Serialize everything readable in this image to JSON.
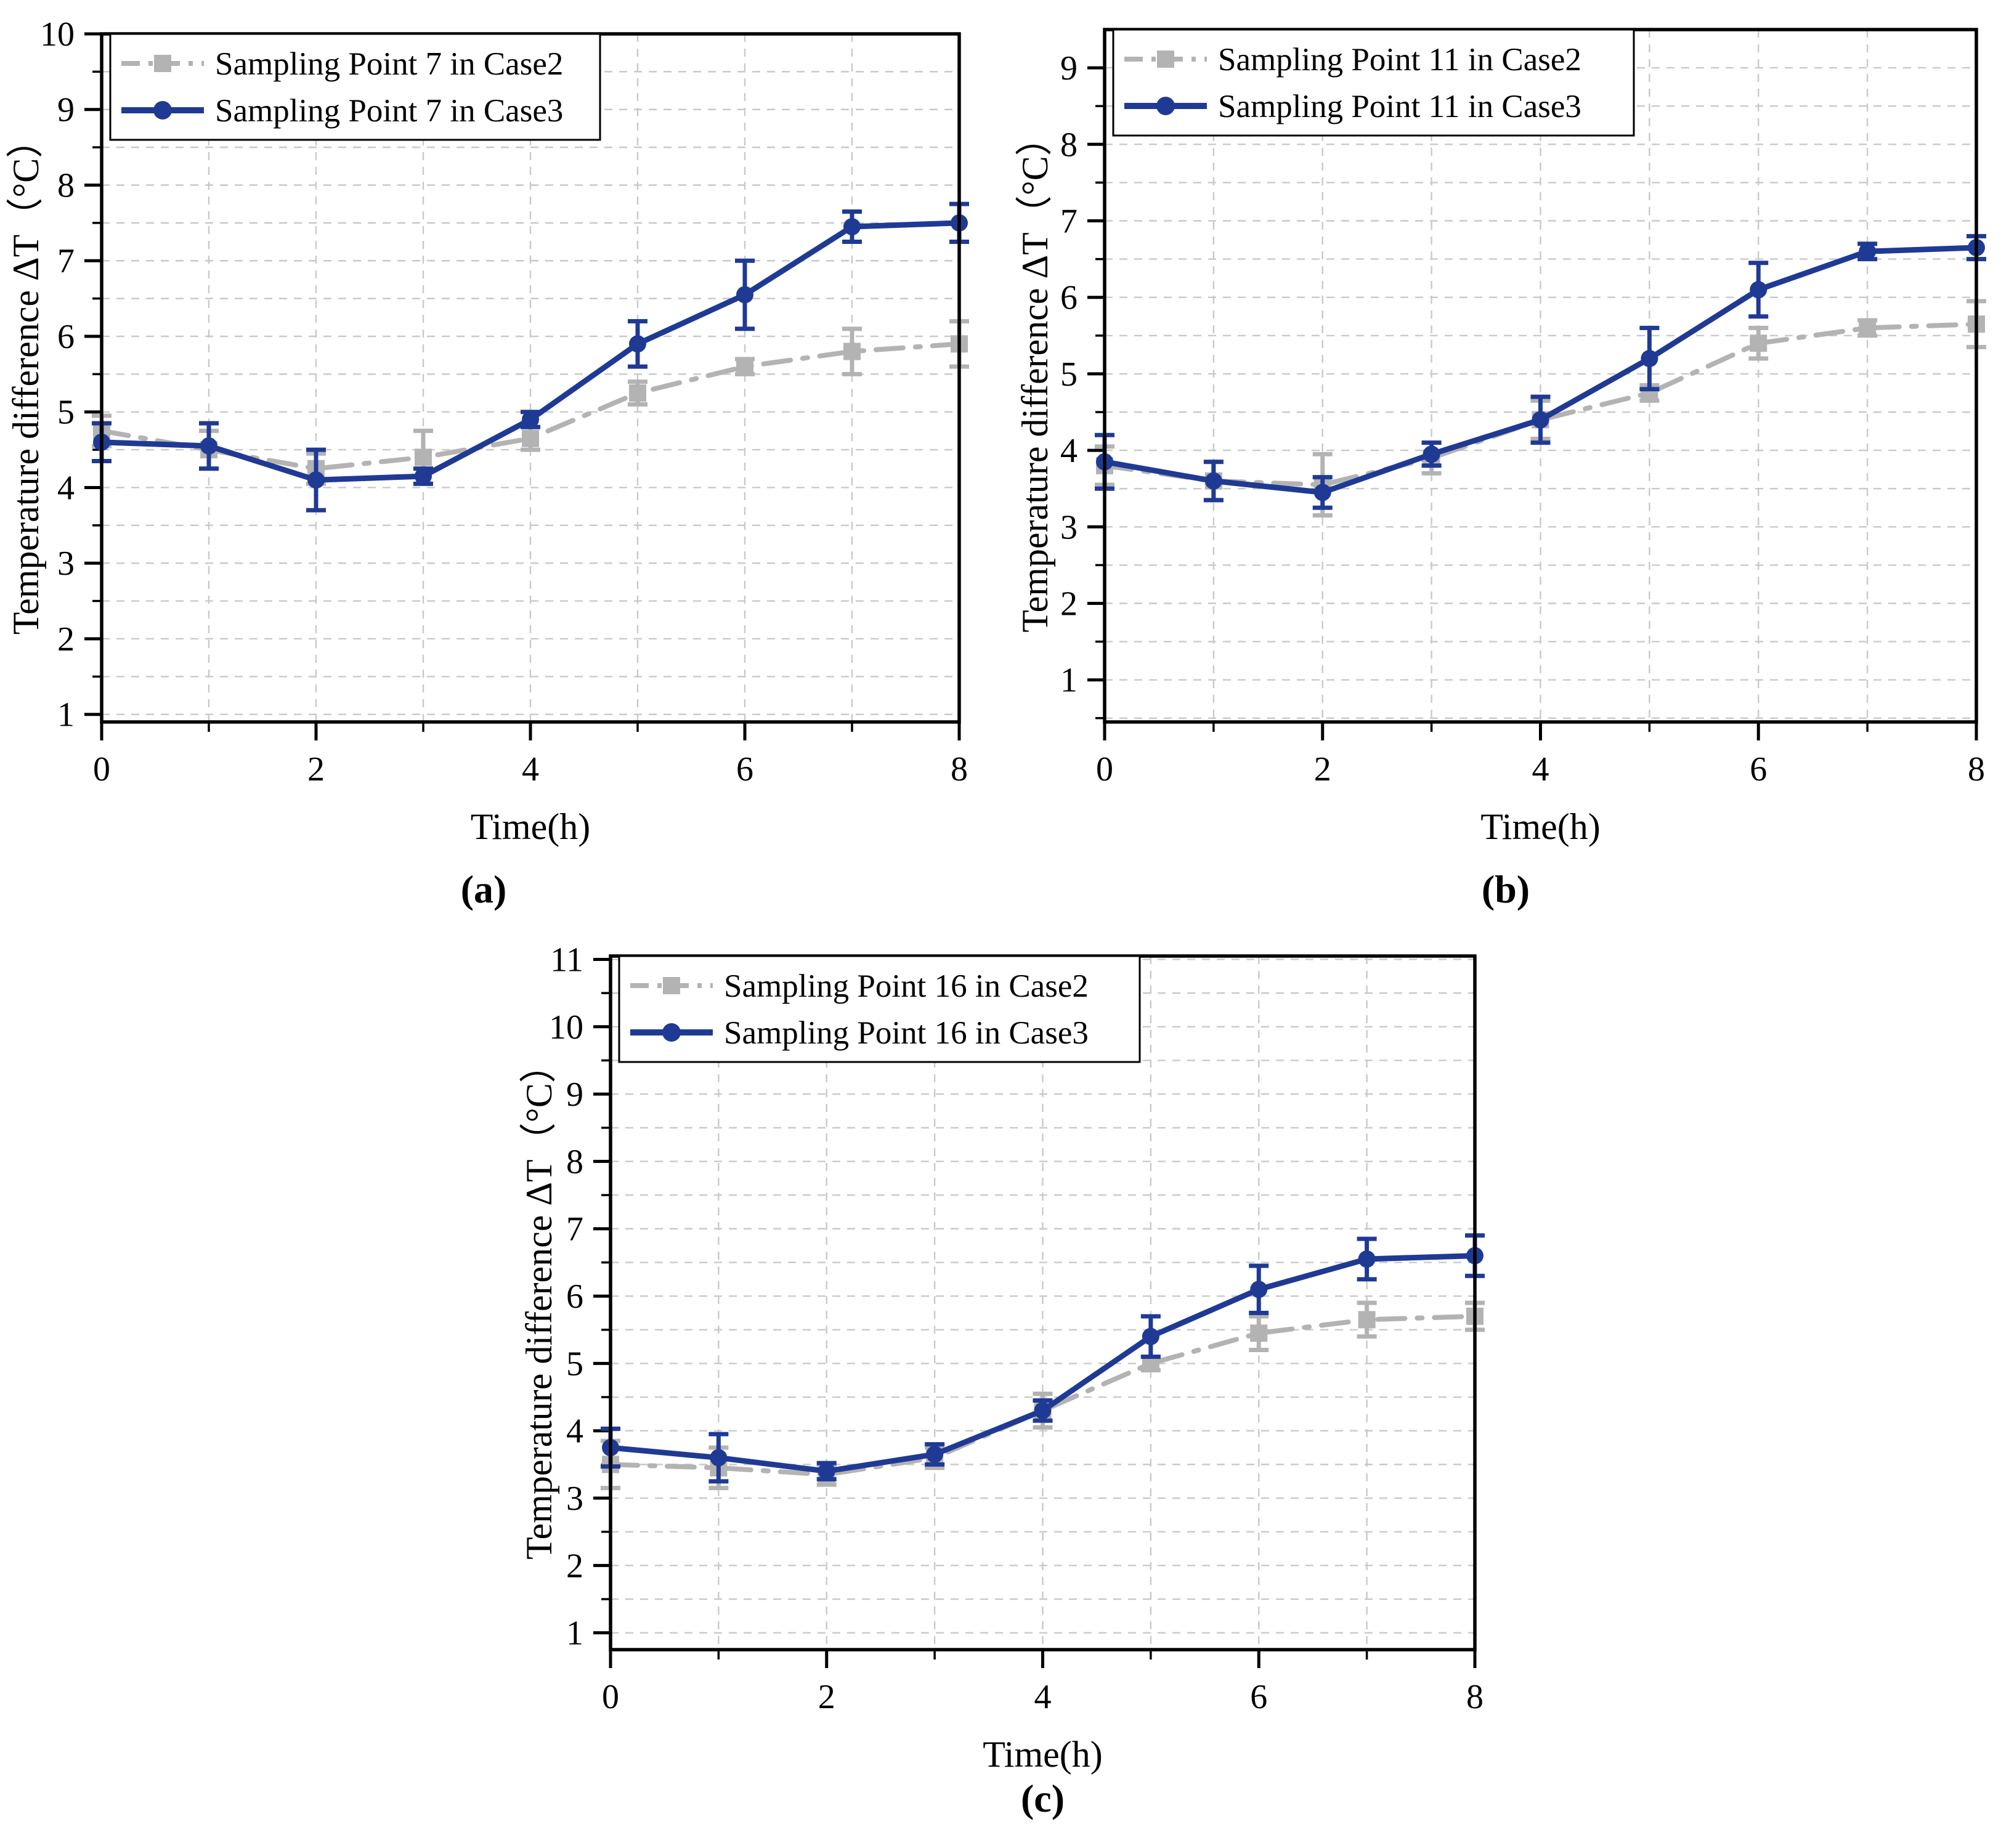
{
  "style": {
    "background": "#ffffff",
    "axis_color": "#000000",
    "grid_color": "#c9c9c9",
    "case2_color": "#b3b3b3",
    "case3_color": "#1f3a94"
  },
  "chart_data": [
    {
      "type": "line",
      "panel": "a",
      "caption": "(a)",
      "xlabel": "Time(h)",
      "ylabel": "Temperature difference ΔT（°C）",
      "x": [
        0,
        1,
        2,
        3,
        4,
        5,
        6,
        7,
        8
      ],
      "xlim": [
        0,
        8
      ],
      "ylim": [
        0.9,
        10
      ],
      "xticks": [
        0,
        2,
        4,
        6,
        8
      ],
      "xminor": [
        1,
        3,
        5,
        7
      ],
      "yticks": [
        1,
        2,
        3,
        4,
        5,
        6,
        7,
        8,
        9,
        10
      ],
      "grid": true,
      "legend_position": "top-left",
      "series": [
        {
          "name": "Sampling Point 7 in Case2",
          "color": "#b3b3b3",
          "marker": "square",
          "line": "dash-dot",
          "values": [
            4.75,
            4.5,
            4.25,
            4.4,
            4.65,
            5.25,
            5.6,
            5.8,
            5.9
          ],
          "errors": [
            0.2,
            0.25,
            0.2,
            0.35,
            0.15,
            0.15,
            0.1,
            0.3,
            0.3
          ]
        },
        {
          "name": "Sampling Point 7 in Case3",
          "color": "#1f3a94",
          "marker": "circle",
          "line": "solid",
          "values": [
            4.6,
            4.55,
            4.1,
            4.15,
            4.9,
            5.9,
            6.55,
            7.45,
            7.5
          ],
          "errors": [
            0.25,
            0.3,
            0.4,
            0.1,
            0.1,
            0.3,
            0.45,
            0.2,
            0.25
          ]
        }
      ]
    },
    {
      "type": "line",
      "panel": "b",
      "caption": "(b)",
      "xlabel": "Time(h)",
      "ylabel": "Temperature difference ΔT（°C）",
      "x": [
        0,
        1,
        2,
        3,
        4,
        5,
        6,
        7,
        8
      ],
      "xlim": [
        0,
        8
      ],
      "ylim": [
        0.45,
        9.5
      ],
      "xticks": [
        0,
        2,
        4,
        6,
        8
      ],
      "xminor": [
        1,
        3,
        5,
        7
      ],
      "yticks": [
        1,
        2,
        3,
        4,
        5,
        6,
        7,
        8,
        9
      ],
      "grid": true,
      "legend_position": "top-left",
      "series": [
        {
          "name": "Sampling Point 11 in Case2",
          "color": "#b3b3b3",
          "marker": "square",
          "line": "dash-dot",
          "values": [
            3.8,
            3.6,
            3.55,
            3.9,
            4.4,
            4.75,
            5.4,
            5.6,
            5.65
          ],
          "errors": [
            0.25,
            0.25,
            0.4,
            0.2,
            0.25,
            0.1,
            0.2,
            0.1,
            0.3
          ]
        },
        {
          "name": "Sampling Point 11 in Case3",
          "color": "#1f3a94",
          "marker": "circle",
          "line": "solid",
          "values": [
            3.85,
            3.6,
            3.45,
            3.95,
            4.4,
            5.2,
            6.1,
            6.6,
            6.65
          ],
          "errors": [
            0.35,
            0.25,
            0.2,
            0.15,
            0.3,
            0.4,
            0.35,
            0.1,
            0.15
          ]
        }
      ]
    },
    {
      "type": "line",
      "panel": "c",
      "caption": "(c)",
      "xlabel": "Time(h)",
      "ylabel": "Temperature difference ΔT（°C）",
      "x": [
        0,
        1,
        2,
        3,
        4,
        5,
        6,
        7,
        8
      ],
      "xlim": [
        0,
        8
      ],
      "ylim": [
        0.75,
        11.05
      ],
      "xticks": [
        0,
        2,
        4,
        6,
        8
      ],
      "xminor": [
        1,
        3,
        5,
        7
      ],
      "yticks": [
        1,
        2,
        3,
        4,
        5,
        6,
        7,
        8,
        9,
        10,
        11
      ],
      "grid": true,
      "legend_position": "top-left",
      "series": [
        {
          "name": "Sampling Point 16 in Case2",
          "color": "#b3b3b3",
          "marker": "square",
          "line": "dash-dot",
          "values": [
            3.5,
            3.45,
            3.35,
            3.6,
            4.3,
            5.0,
            5.45,
            5.65,
            5.7
          ],
          "errors": [
            0.35,
            0.3,
            0.15,
            0.15,
            0.25,
            0.1,
            0.25,
            0.25,
            0.2
          ]
        },
        {
          "name": "Sampling Point 16 in Case3",
          "color": "#1f3a94",
          "marker": "circle",
          "line": "solid",
          "values": [
            3.75,
            3.6,
            3.4,
            3.65,
            4.3,
            5.4,
            6.1,
            6.55,
            6.6
          ],
          "errors": [
            0.28,
            0.35,
            0.12,
            0.15,
            0.15,
            0.3,
            0.35,
            0.3,
            0.3
          ]
        }
      ]
    }
  ]
}
